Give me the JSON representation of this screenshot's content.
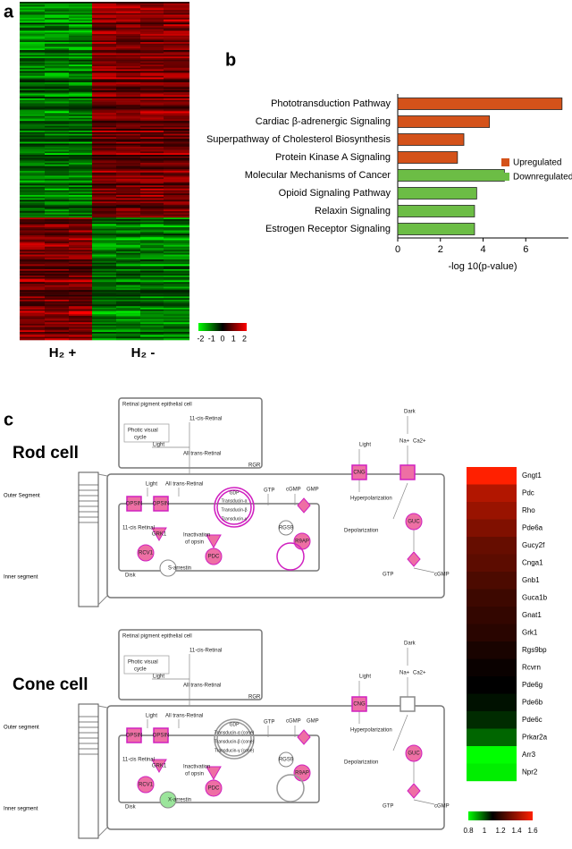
{
  "panels": {
    "a": {
      "label": "a",
      "heatmap_clim": [
        -2.2,
        2.2
      ],
      "legend_ticks": [
        -2,
        -1,
        0,
        1,
        2
      ],
      "groups": [
        "H₂ +",
        "H₂ -"
      ]
    },
    "b": {
      "label": "b",
      "chart_data": {
        "type": "bar",
        "orientation": "horizontal",
        "categories": [
          "Phototransduction Pathway",
          "Cardiac β-adrenergic Signaling",
          "Superpathway of Cholesterol Biosynthesis",
          "Protein Kinase A Signaling",
          "Molecular Mechanisms of Cancer",
          "Opioid Signaling Pathway",
          "Relaxin Signaling",
          "Estrogen Receptor Signaling"
        ],
        "series": [
          {
            "name": "Upregulated",
            "color": "#d4521a",
            "values": [
              7.7,
              4.3,
              3.1,
              2.8,
              null,
              null,
              null,
              null
            ]
          },
          {
            "name": "Downregulated",
            "color": "#6cbd45",
            "values": [
              null,
              null,
              null,
              null,
              5.0,
              3.7,
              3.6,
              3.6
            ]
          }
        ],
        "xlabel": "-log 10(p-value)",
        "xlim": [
          0,
          8
        ],
        "xticks": [
          0,
          2,
          4,
          6
        ],
        "legend": "right"
      }
    },
    "c": {
      "label": "c",
      "cells": {
        "rod": {
          "title": "Rod cell",
          "segments": [
            "Outer Segment",
            "Inner segment"
          ],
          "labels": [
            "Retinal pigment epithelial cell",
            "11-cis-Retinal",
            "Photic visual",
            "cycle",
            "Light",
            "All trans-Retinal",
            "RGR",
            "Light",
            "All trans-Retinal",
            "OPSIN",
            "OPSIN",
            "11-cis Retinal",
            "GRK1",
            "RCV1",
            "Inactivation",
            "of opsin",
            "PDC",
            "S-arrestin",
            "Disk",
            "GTP",
            "cGMP",
            "GMP",
            "RGS9",
            "R9AP",
            "Light",
            "CNG",
            "Hyperpolarization",
            "Depolarization",
            "Dark",
            "Na+",
            "Ca2+",
            "GUC",
            "GTP",
            "cGMP",
            "GDP",
            "Transducin-α",
            "Transducin-β",
            "Transducin-γ"
          ]
        },
        "cone": {
          "title": "Cone cell",
          "segments": [
            "Outer segment",
            "Inner segment"
          ],
          "labels": [
            "Retinal pigment epithelial cell",
            "11-cis-Retinal",
            "Photic visual",
            "cycle",
            "Light",
            "All trans-Retinal",
            "RGR",
            "Light",
            "All trans-Retinal",
            "OPSIN",
            "OPSIN",
            "11-cis Retinal",
            "GRK1",
            "RCV1",
            "Inactivation",
            "of opsin",
            "PDC",
            "X-arrestin",
            "Disk",
            "GTP",
            "cGMP",
            "GMP",
            "RGS9",
            "R9AP",
            "Light",
            "CNG",
            "Hyperpolarization",
            "Depolarization",
            "Dark",
            "Na+",
            "Ca2+",
            "GUC",
            "GTP",
            "cGMP",
            "GDP",
            "Transducin-α (cone)",
            "Transducin-β (cone)",
            "Transducin-γ (cone)"
          ]
        }
      },
      "heatmap": {
        "genes": [
          "Gngt1",
          "Pdc",
          "Rho",
          "Pde6a",
          "Gucy2f",
          "Cnga1",
          "Gnb1",
          "Guca1b",
          "Gnat1",
          "Grk1",
          "Rgs9bp",
          "Rcvrn",
          "Pde6g",
          "Pde6b",
          "Pde6c",
          "Prkar2a",
          "Arr3",
          "Npr2"
        ],
        "values": [
          1.6,
          1.45,
          1.4,
          1.35,
          1.3,
          1.28,
          1.25,
          1.22,
          1.2,
          1.18,
          1.15,
          1.12,
          1.1,
          1.08,
          1.05,
          0.98,
          0.8,
          0.82
        ],
        "clim": [
          0.8,
          1.6
        ],
        "legend_ticks": [
          0.8,
          1,
          1.2,
          1.4,
          1.6
        ]
      }
    }
  }
}
